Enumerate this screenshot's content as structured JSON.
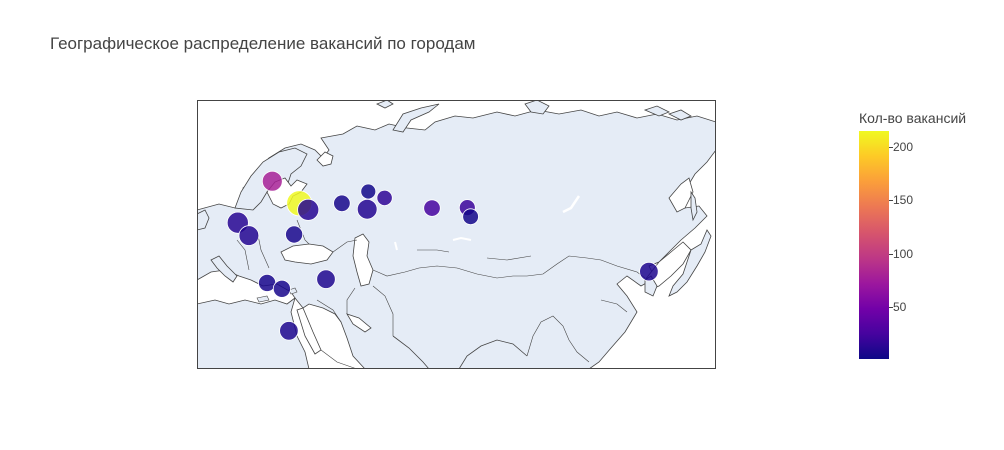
{
  "title": "Географическое распределение вакансий по городам",
  "colorbar": {
    "title": "Кол-во вакансий",
    "min": 1,
    "max": 215,
    "ticks": [
      {
        "value": 200,
        "label": "200"
      },
      {
        "value": 150,
        "label": "150"
      },
      {
        "value": 100,
        "label": "100"
      },
      {
        "value": 50,
        "label": "50"
      }
    ]
  },
  "colors": {
    "land": "#e5ecf6",
    "coastline": "#444444",
    "frame": "#444444",
    "marker_outline": "#ffffff"
  },
  "chart_data": {
    "type": "scatter",
    "geo": true,
    "lon_range": [
      10,
      150
    ],
    "lat_range": [
      25,
      75
    ],
    "points": [
      {
        "lon": 30.3,
        "lat": 59.9,
        "value": 80
      },
      {
        "lon": 37.6,
        "lat": 55.8,
        "value": 215
      },
      {
        "lon": 40.0,
        "lat": 54.6,
        "value": 12
      },
      {
        "lon": 49.1,
        "lat": 55.8,
        "value": 5
      },
      {
        "lon": 56.2,
        "lat": 58.0,
        "value": 3
      },
      {
        "lon": 55.9,
        "lat": 54.7,
        "value": 10
      },
      {
        "lon": 60.6,
        "lat": 56.8,
        "value": 15
      },
      {
        "lon": 73.4,
        "lat": 54.9,
        "value": 25
      },
      {
        "lon": 82.9,
        "lat": 55.0,
        "value": 20
      },
      {
        "lon": 83.8,
        "lat": 53.3,
        "value": 4
      },
      {
        "lon": 131.9,
        "lat": 43.1,
        "value": 8
      },
      {
        "lon": 36.2,
        "lat": 50.0,
        "value": 6
      },
      {
        "lon": 24.0,
        "lat": 49.8,
        "value": 10
      },
      {
        "lon": 21.0,
        "lat": 52.2,
        "value": 12
      },
      {
        "lon": 28.9,
        "lat": 41.0,
        "value": 6
      },
      {
        "lon": 44.8,
        "lat": 41.7,
        "value": 8
      },
      {
        "lon": 32.9,
        "lat": 39.9,
        "value": 6
      },
      {
        "lon": 34.8,
        "lat": 32.1,
        "value": 8
      }
    ]
  }
}
